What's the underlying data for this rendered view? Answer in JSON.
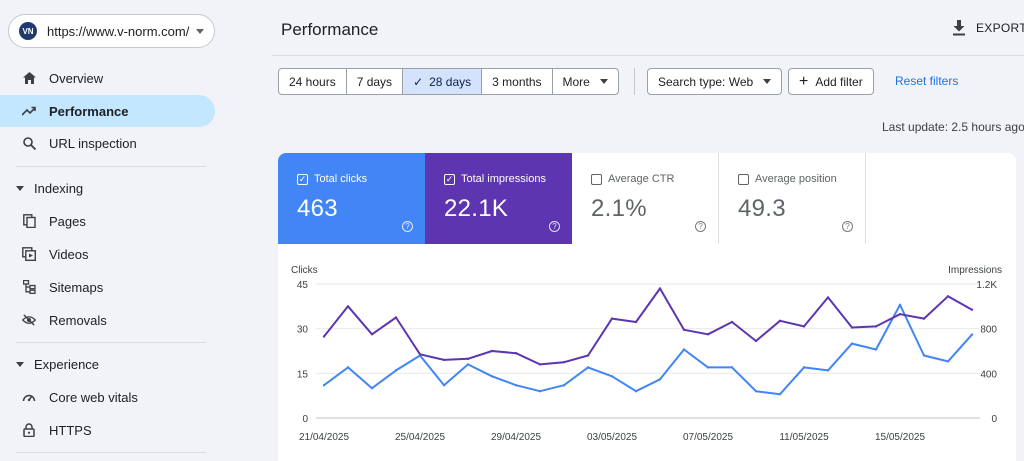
{
  "property": {
    "url": "https://www.v-norm.com/",
    "logo": "VN"
  },
  "sidebar": {
    "items": [
      {
        "label": "Overview",
        "icon": "home-icon"
      },
      {
        "label": "Performance",
        "icon": "trending-up-icon"
      },
      {
        "label": "URL inspection",
        "icon": "search-icon"
      }
    ],
    "indexing": {
      "label": "Indexing",
      "items": [
        {
          "label": "Pages",
          "icon": "pages-icon"
        },
        {
          "label": "Videos",
          "icon": "video-icon"
        },
        {
          "label": "Sitemaps",
          "icon": "sitemap-icon"
        },
        {
          "label": "Removals",
          "icon": "eye-off-icon"
        }
      ]
    },
    "experience": {
      "label": "Experience",
      "items": [
        {
          "label": "Core web vitals",
          "icon": "gauge-icon"
        },
        {
          "label": "HTTPS",
          "icon": "lock-icon"
        }
      ]
    }
  },
  "header": {
    "title": "Performance",
    "export_label": "EXPORT"
  },
  "filters": {
    "ranges": [
      "24 hours",
      "7 days",
      "28 days",
      "3 months",
      "More"
    ],
    "selected_range": "28 days",
    "search_type": "Search type: Web",
    "add_filter": "Add filter",
    "reset": "Reset filters"
  },
  "last_update": "Last update: 2.5 hours ago",
  "metrics": [
    {
      "label": "Total clicks",
      "value": "463",
      "checked": true,
      "color": "#4285f4"
    },
    {
      "label": "Total impressions",
      "value": "22.1K",
      "checked": true,
      "color": "#5e35b1"
    },
    {
      "label": "Average CTR",
      "value": "2.1%",
      "checked": false
    },
    {
      "label": "Average position",
      "value": "49.3",
      "checked": false
    }
  ],
  "chart_data": {
    "type": "line",
    "left_axis": {
      "label": "Clicks",
      "ticks": [
        "45",
        "30",
        "15",
        "0"
      ],
      "range": [
        0,
        45
      ]
    },
    "right_axis": {
      "label": "Impressions",
      "ticks": [
        "1.2K",
        "800",
        "400",
        "0"
      ],
      "range": [
        0,
        1200
      ]
    },
    "x_ticks": [
      "21/04/2025",
      "25/04/2025",
      "29/04/2025",
      "03/05/2025",
      "07/05/2025",
      "11/05/2025",
      "15/05/2025"
    ],
    "x": [
      "21/04/2025",
      "22/04/2025",
      "23/04/2025",
      "24/04/2025",
      "25/04/2025",
      "26/04/2025",
      "27/04/2025",
      "28/04/2025",
      "29/04/2025",
      "30/04/2025",
      "01/05/2025",
      "02/05/2025",
      "03/05/2025",
      "04/05/2025",
      "05/05/2025",
      "06/05/2025",
      "07/05/2025",
      "08/05/2025",
      "09/05/2025",
      "10/05/2025",
      "11/05/2025",
      "12/05/2025",
      "13/05/2025",
      "14/05/2025",
      "15/05/2025",
      "16/05/2025",
      "17/05/2025",
      "18/05/2025"
    ],
    "series": [
      {
        "name": "Total clicks",
        "axis": "left",
        "color": "#4285f4",
        "values": [
          11,
          17,
          10,
          16,
          21,
          11,
          18,
          14,
          11,
          9,
          11,
          17,
          14,
          9,
          13,
          23,
          17,
          17,
          9,
          8,
          17,
          16,
          25,
          23,
          38,
          21,
          19,
          28
        ]
      },
      {
        "name": "Total impressions",
        "axis": "right",
        "color": "#5e35b1",
        "values": [
          730,
          1000,
          750,
          900,
          570,
          520,
          530,
          600,
          580,
          480,
          500,
          560,
          890,
          860,
          1160,
          790,
          750,
          860,
          690,
          870,
          820,
          1080,
          810,
          820,
          930,
          890,
          1090,
          970
        ]
      }
    ]
  }
}
